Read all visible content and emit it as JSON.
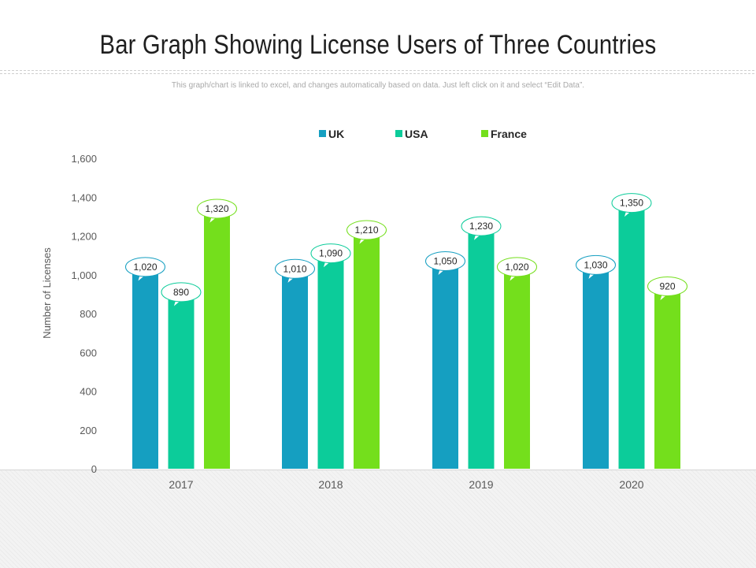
{
  "page": {
    "title": "Bar Graph Showing License Users of Three Countries",
    "subtitle": "This graph/chart is linked to excel, and changes automatically based on data. Just left click on it and select “Edit Data”."
  },
  "chart_data": {
    "type": "bar",
    "categories": [
      "2017",
      "2018",
      "2019",
      "2020"
    ],
    "series": [
      {
        "name": "UK",
        "color": "#159fc1",
        "values": [
          1020,
          1010,
          1050,
          1030
        ]
      },
      {
        "name": "USA",
        "color": "#0ccc9a",
        "values": [
          890,
          1090,
          1230,
          1350
        ]
      },
      {
        "name": "France",
        "color": "#74df1c",
        "values": [
          1320,
          1210,
          1020,
          920
        ]
      }
    ],
    "value_labels": [
      [
        "1,020",
        "1,010",
        "1,050",
        "1,030"
      ],
      [
        "890",
        "1,090",
        "1,230",
        "1,350"
      ],
      [
        "1,320",
        "1,210",
        "1,020",
        "920"
      ]
    ],
    "yticks": [
      0,
      200,
      400,
      600,
      800,
      1000,
      1200,
      1400,
      1600
    ],
    "ytick_labels": [
      "0",
      "200",
      "400",
      "600",
      "800",
      "1,000",
      "1,200",
      "1,400",
      "1,600"
    ],
    "ylim": [
      0,
      1600
    ],
    "xlabel": "",
    "ylabel": "Number of Licenses",
    "legend_position": "top-center",
    "grid": false
  }
}
